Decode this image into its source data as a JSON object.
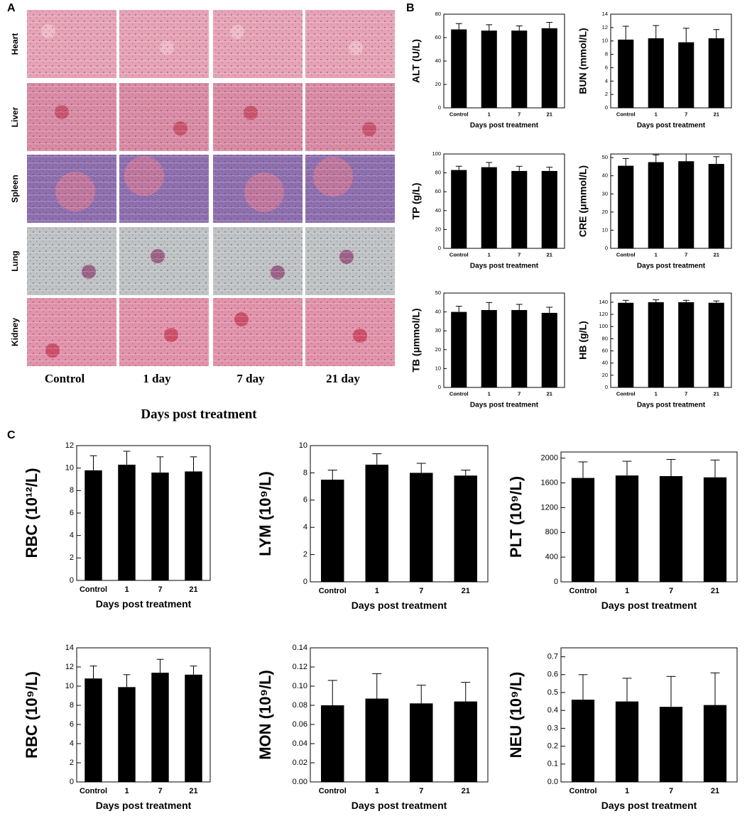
{
  "panel_labels": [
    "A",
    "B",
    "C"
  ],
  "histology": {
    "rows": [
      "Heart",
      "Liver",
      "Spleen",
      "Lung",
      "Kidney"
    ],
    "columns": [
      "Control",
      "1 day",
      "7 day",
      "21 day"
    ],
    "xlabel": "Days post treatment"
  },
  "chart_data": [
    {
      "type": "bar",
      "ylabel": "ALT (U/L)",
      "xlabel": "Days post treatment",
      "categories": [
        "Control",
        "1",
        "7",
        "21"
      ],
      "values": [
        67,
        66,
        66,
        68
      ],
      "errors": [
        5,
        5,
        4,
        5
      ],
      "color": "#000000",
      "ylim": [
        0,
        80
      ],
      "yticks": [
        0,
        20,
        40,
        60,
        80
      ]
    },
    {
      "type": "bar",
      "ylabel": "BUN (mmol/L)",
      "xlabel": "Days post treatment",
      "categories": [
        "Control",
        "1",
        "7",
        "21"
      ],
      "values": [
        10.2,
        10.4,
        9.8,
        10.4
      ],
      "errors": [
        2.0,
        1.9,
        2.1,
        1.3
      ],
      "color": "#000000",
      "ylim": [
        0,
        14
      ],
      "yticks": [
        0,
        2,
        4,
        6,
        8,
        10,
        12,
        14
      ]
    },
    {
      "type": "bar",
      "ylabel": "TP (g/L)",
      "xlabel": "Days post treatment",
      "categories": [
        "Control",
        "1",
        "7",
        "21"
      ],
      "values": [
        83,
        86,
        82,
        82
      ],
      "errors": [
        4,
        5,
        5,
        4
      ],
      "color": "#000000",
      "ylim": [
        0,
        100
      ],
      "yticks": [
        0,
        20,
        40,
        60,
        80,
        100
      ]
    },
    {
      "type": "bar",
      "ylabel": "CRE (μmmol/L)",
      "xlabel": "Days post treatment",
      "categories": [
        "Control",
        "1",
        "7",
        "21"
      ],
      "values": [
        45.5,
        47.5,
        48,
        46.5
      ],
      "errors": [
        4,
        4,
        4,
        4
      ],
      "color": "#000000",
      "ylim": [
        0,
        52
      ],
      "yticks": [
        0,
        10,
        20,
        30,
        40,
        50
      ]
    },
    {
      "type": "bar",
      "ylabel": "TB (μmmol/L)",
      "xlabel": "Days post treatment",
      "categories": [
        "Control",
        "1",
        "7",
        "21"
      ],
      "values": [
        40,
        41,
        41,
        39.5
      ],
      "errors": [
        3,
        4,
        3,
        3
      ],
      "color": "#000000",
      "ylim": [
        0,
        50
      ],
      "yticks": [
        0,
        10,
        20,
        30,
        40,
        50
      ]
    },
    {
      "type": "bar",
      "ylabel": "HB (g/L)",
      "xlabel": "Days post treatment",
      "categories": [
        "Control",
        "1",
        "7",
        "21"
      ],
      "values": [
        139,
        140,
        140,
        139
      ],
      "errors": [
        4,
        4,
        3,
        3
      ],
      "color": "#000000",
      "ylim": [
        0,
        155
      ],
      "yticks": [
        0,
        20,
        40,
        60,
        80,
        100,
        120,
        140
      ]
    },
    {
      "type": "bar",
      "ylabel": "RBC (10¹²/L)",
      "xlabel": "Days post treatment",
      "categories": [
        "Control",
        "1",
        "7",
        "21"
      ],
      "values": [
        9.8,
        10.3,
        9.6,
        9.7
      ],
      "errors": [
        1.3,
        1.2,
        1.4,
        1.3
      ],
      "color": "#000000",
      "ylim": [
        0,
        12
      ],
      "yticks": [
        0,
        2,
        4,
        6,
        8,
        10,
        12
      ]
    },
    {
      "type": "bar",
      "ylabel": "LYM (10⁹/L)",
      "xlabel": "Days post treatment",
      "categories": [
        "Control",
        "1",
        "7",
        "21"
      ],
      "values": [
        7.5,
        8.6,
        8.0,
        7.8
      ],
      "errors": [
        0.7,
        0.8,
        0.7,
        0.4
      ],
      "color": "#000000",
      "ylim": [
        0,
        10
      ],
      "yticks": [
        0,
        2,
        4,
        6,
        8,
        10
      ]
    },
    {
      "type": "bar",
      "ylabel": "PLT (10⁹/L)",
      "xlabel": "Days post treatment",
      "categories": [
        "Control",
        "1",
        "7",
        "21"
      ],
      "values": [
        1680,
        1720,
        1710,
        1690
      ],
      "errors": [
        260,
        230,
        270,
        280
      ],
      "color": "#000000",
      "ylim": [
        0,
        2100
      ],
      "yticks": [
        0,
        400,
        800,
        1200,
        1600,
        2000
      ]
    },
    {
      "type": "bar",
      "ylabel": "RBC (10⁹/L)",
      "xlabel": "Days post treatment",
      "categories": [
        "Control",
        "1",
        "7",
        "21"
      ],
      "values": [
        10.8,
        9.9,
        11.4,
        11.2
      ],
      "errors": [
        1.3,
        1.3,
        1.4,
        0.9
      ],
      "color": "#000000",
      "ylim": [
        0,
        14
      ],
      "yticks": [
        0,
        2,
        4,
        6,
        8,
        10,
        12,
        14
      ]
    },
    {
      "type": "bar",
      "ylabel": "MON (10⁹/L)",
      "xlabel": "Days post treatment",
      "categories": [
        "Control",
        "1",
        "7",
        "21"
      ],
      "values": [
        0.08,
        0.087,
        0.082,
        0.084
      ],
      "errors": [
        0.026,
        0.026,
        0.019,
        0.02
      ],
      "color": "#000000",
      "ylim": [
        0,
        0.14
      ],
      "yticks": [
        {
          "value": 0,
          "label": "0.00"
        },
        {
          "value": 0.02,
          "label": "0.02"
        },
        {
          "value": 0.04,
          "label": "0.04"
        },
        {
          "value": 0.06,
          "label": "0.06"
        },
        {
          "value": 0.08,
          "label": "0.08"
        },
        {
          "value": 0.1,
          "label": "0.10"
        },
        {
          "value": 0.12,
          "label": "0.12"
        },
        {
          "value": 0.14,
          "label": "0.14"
        }
      ]
    },
    {
      "type": "bar",
      "ylabel": "NEU (10⁹/L)",
      "xlabel": "Days post treatment",
      "categories": [
        "Control",
        "1",
        "7",
        "21"
      ],
      "values": [
        0.46,
        0.45,
        0.42,
        0.43
      ],
      "errors": [
        0.14,
        0.13,
        0.17,
        0.18
      ],
      "color": "#000000",
      "ylim": [
        0,
        0.75
      ],
      "yticks": [
        {
          "value": 0,
          "label": "0.0"
        },
        0.1,
        0.2,
        0.3,
        0.4,
        0.5,
        0.6,
        0.7
      ]
    }
  ]
}
